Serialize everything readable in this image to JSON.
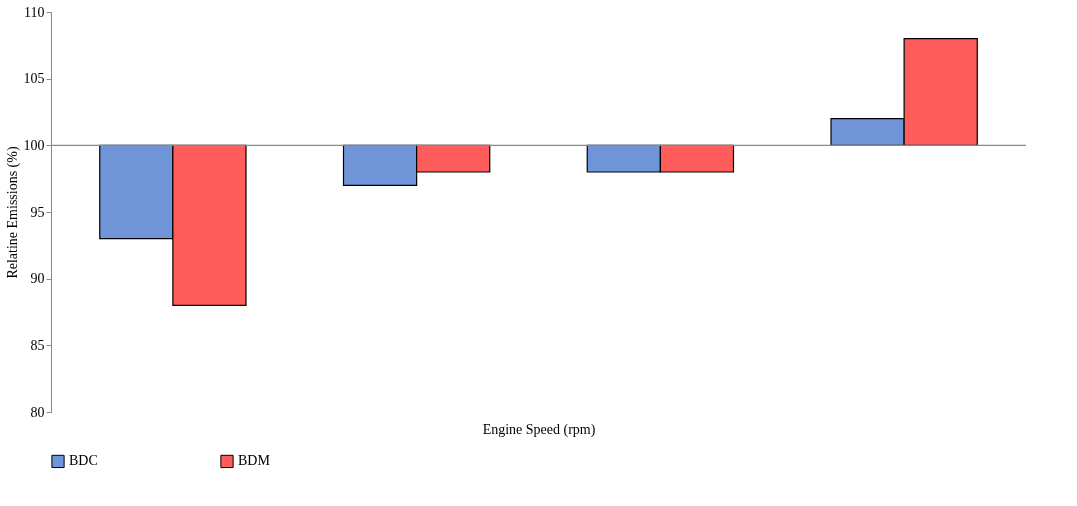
{
  "chart_data": {
    "type": "bar",
    "xlabel": "Engine Speed (rpm)",
    "ylabel": "Relatine Emissions (%)",
    "categories": [
      null,
      null,
      null,
      null
    ],
    "series": [
      {
        "name": "BDC",
        "color": "#6f95d8",
        "base": [
          100,
          100,
          100,
          100
        ],
        "values": [
          -7,
          -3,
          -2,
          2
        ]
      },
      {
        "name": "BDM",
        "color": "#ff5c5c",
        "base": [
          100,
          100,
          100,
          100
        ],
        "values": [
          -12,
          -2,
          -2,
          8
        ]
      }
    ],
    "ref_lines": [
      {
        "axis": "y",
        "value": 100,
        "color": "#888888"
      }
    ],
    "ylim": [
      80,
      110
    ],
    "yticks": [
      80,
      85,
      90,
      95,
      100,
      105,
      110
    ],
    "grid": false,
    "legend": "bottom",
    "tick_labels": "y"
  }
}
